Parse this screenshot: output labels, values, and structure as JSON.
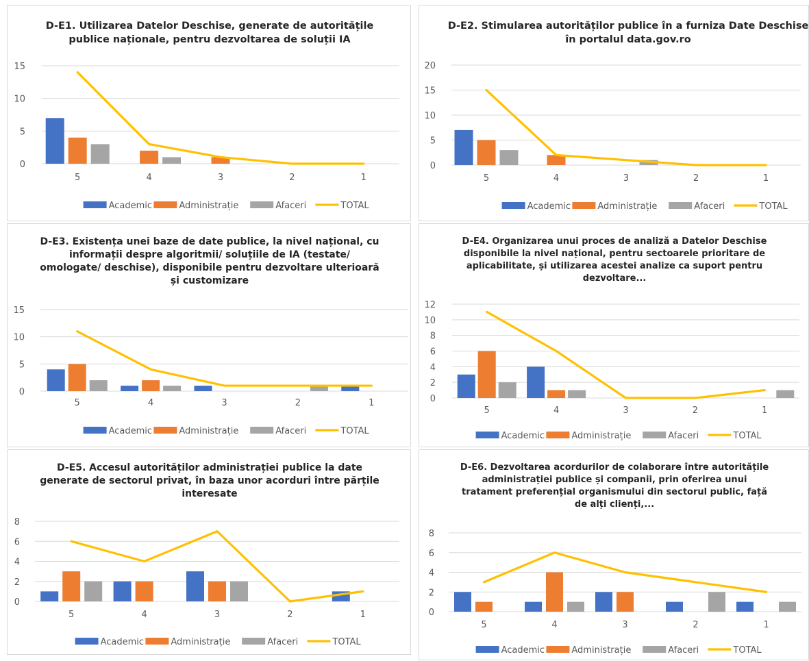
{
  "colors": {
    "Academic": "#4472C4",
    "Administrație": "#ED7D31",
    "Afaceri": "#A5A5A5",
    "TOTAL": "#FFC000",
    "grid": "#d9d9d9",
    "text": "#595959"
  },
  "chart_data": [
    {
      "type": "bar",
      "title": [
        "D-E1. Utilizarea Datelor Deschise, generate de autoritățile",
        "publice naționale, pentru dezvoltarea de soluții IA"
      ],
      "categories": [
        "5",
        "4",
        "3",
        "2",
        "1"
      ],
      "yticks": [
        0,
        5,
        10,
        15
      ],
      "ylim": [
        0,
        15
      ],
      "series": [
        {
          "name": "Academic",
          "type": "bar",
          "values": [
            7,
            0,
            0,
            0,
            0
          ]
        },
        {
          "name": "Administrație",
          "type": "bar",
          "values": [
            4,
            2,
            1,
            0,
            0
          ]
        },
        {
          "name": "Afaceri",
          "type": "bar",
          "values": [
            3,
            1,
            0,
            0,
            0
          ]
        },
        {
          "name": "TOTAL",
          "type": "line",
          "values": [
            14,
            3,
            1,
            0,
            0
          ]
        }
      ],
      "legend": "bottom",
      "grid": true
    },
    {
      "type": "bar",
      "title": [
        "D-E2. Stimularea autorităților publice în a furniza Date Deschise",
        "în portalul data.gov.ro"
      ],
      "categories": [
        "5",
        "4",
        "3",
        "2",
        "1"
      ],
      "yticks": [
        0,
        5,
        10,
        15,
        20
      ],
      "ylim": [
        0,
        20
      ],
      "series": [
        {
          "name": "Academic",
          "type": "bar",
          "values": [
            7,
            0,
            0,
            0,
            0
          ]
        },
        {
          "name": "Administrație",
          "type": "bar",
          "values": [
            5,
            2,
            0,
            0,
            0
          ]
        },
        {
          "name": "Afaceri",
          "type": "bar",
          "values": [
            3,
            0,
            1,
            0,
            0
          ]
        },
        {
          "name": "TOTAL",
          "type": "line",
          "values": [
            15,
            2,
            1,
            0,
            0
          ]
        }
      ],
      "legend": "bottom",
      "grid": true
    },
    {
      "type": "bar",
      "title": [
        "D-E3. Existența unei baze de date publice, la nivel național, cu",
        "informații despre algoritmii/ soluțiile de IA (testate/",
        "omologate/ deschise), disponibile pentru dezvoltare ulterioară",
        "și customizare"
      ],
      "categories": [
        "5",
        "4",
        "3",
        "2",
        "1"
      ],
      "yticks": [
        0,
        5,
        10,
        15
      ],
      "ylim": [
        0,
        15
      ],
      "series": [
        {
          "name": "Academic",
          "type": "bar",
          "values": [
            4,
            1,
            1,
            0,
            1
          ]
        },
        {
          "name": "Administrație",
          "type": "bar",
          "values": [
            5,
            2,
            0,
            0,
            0
          ]
        },
        {
          "name": "Afaceri",
          "type": "bar",
          "values": [
            2,
            1,
            0,
            1,
            0
          ]
        },
        {
          "name": "TOTAL",
          "type": "line",
          "values": [
            11,
            4,
            1,
            1,
            1
          ]
        }
      ],
      "legend": "bottom",
      "grid": true
    },
    {
      "type": "bar",
      "title": [
        "D-E4. Organizarea unui proces de analiză a Datelor Deschise",
        "disponibile la nivel național, pentru sectoarele prioritare de",
        "aplicabilitate, și utilizarea acestei analize ca suport pentru",
        "dezvoltare..."
      ],
      "categories": [
        "5",
        "4",
        "3",
        "2",
        "1"
      ],
      "yticks": [
        0,
        2,
        4,
        6,
        8,
        10,
        12
      ],
      "ylim": [
        0,
        12
      ],
      "series": [
        {
          "name": "Academic",
          "type": "bar",
          "values": [
            3,
            4,
            0,
            0,
            0
          ]
        },
        {
          "name": "Administrație",
          "type": "bar",
          "values": [
            6,
            1,
            0,
            0,
            0
          ]
        },
        {
          "name": "Afaceri",
          "type": "bar",
          "values": [
            2,
            1,
            0,
            0,
            1
          ]
        },
        {
          "name": "TOTAL",
          "type": "line",
          "values": [
            11,
            6,
            0,
            0,
            1
          ]
        }
      ],
      "legend": "bottom",
      "grid": true
    },
    {
      "type": "bar",
      "title": [
        "D-E5. Accesul autorităților administrației publice la date",
        "generate de sectorul privat, în baza unor acorduri între părțile",
        "interesate"
      ],
      "categories": [
        "5",
        "4",
        "3",
        "2",
        "1"
      ],
      "yticks": [
        0,
        2,
        4,
        6,
        8
      ],
      "ylim": [
        0,
        8
      ],
      "series": [
        {
          "name": "Academic",
          "type": "bar",
          "values": [
            1,
            2,
            3,
            0,
            1
          ]
        },
        {
          "name": "Administrație",
          "type": "bar",
          "values": [
            3,
            2,
            2,
            0,
            0
          ]
        },
        {
          "name": "Afaceri",
          "type": "bar",
          "values": [
            2,
            0,
            2,
            0,
            0
          ]
        },
        {
          "name": "TOTAL",
          "type": "line",
          "values": [
            6,
            4,
            7,
            0,
            1
          ]
        }
      ],
      "legend": "bottom",
      "grid": true
    },
    {
      "type": "bar",
      "title": [
        "D-E6. Dezvoltarea acordurilor de colaborare între autoritățile",
        "administrației publice și companii, prin oferirea unui",
        "tratament preferențial organismului din sectorul public, față",
        "de alți clienți,..."
      ],
      "categories": [
        "5",
        "4",
        "3",
        "2",
        "1"
      ],
      "yticks": [
        0,
        2,
        4,
        6,
        8
      ],
      "ylim": [
        0,
        8
      ],
      "series": [
        {
          "name": "Academic",
          "type": "bar",
          "values": [
            2,
            1,
            2,
            1,
            1
          ]
        },
        {
          "name": "Administrație",
          "type": "bar",
          "values": [
            1,
            4,
            2,
            0,
            0
          ]
        },
        {
          "name": "Afaceri",
          "type": "bar",
          "values": [
            0,
            1,
            0,
            2,
            1
          ]
        },
        {
          "name": "TOTAL",
          "type": "line",
          "values": [
            3,
            6,
            4,
            3,
            2
          ]
        }
      ],
      "legend": "bottom",
      "grid": true
    }
  ]
}
